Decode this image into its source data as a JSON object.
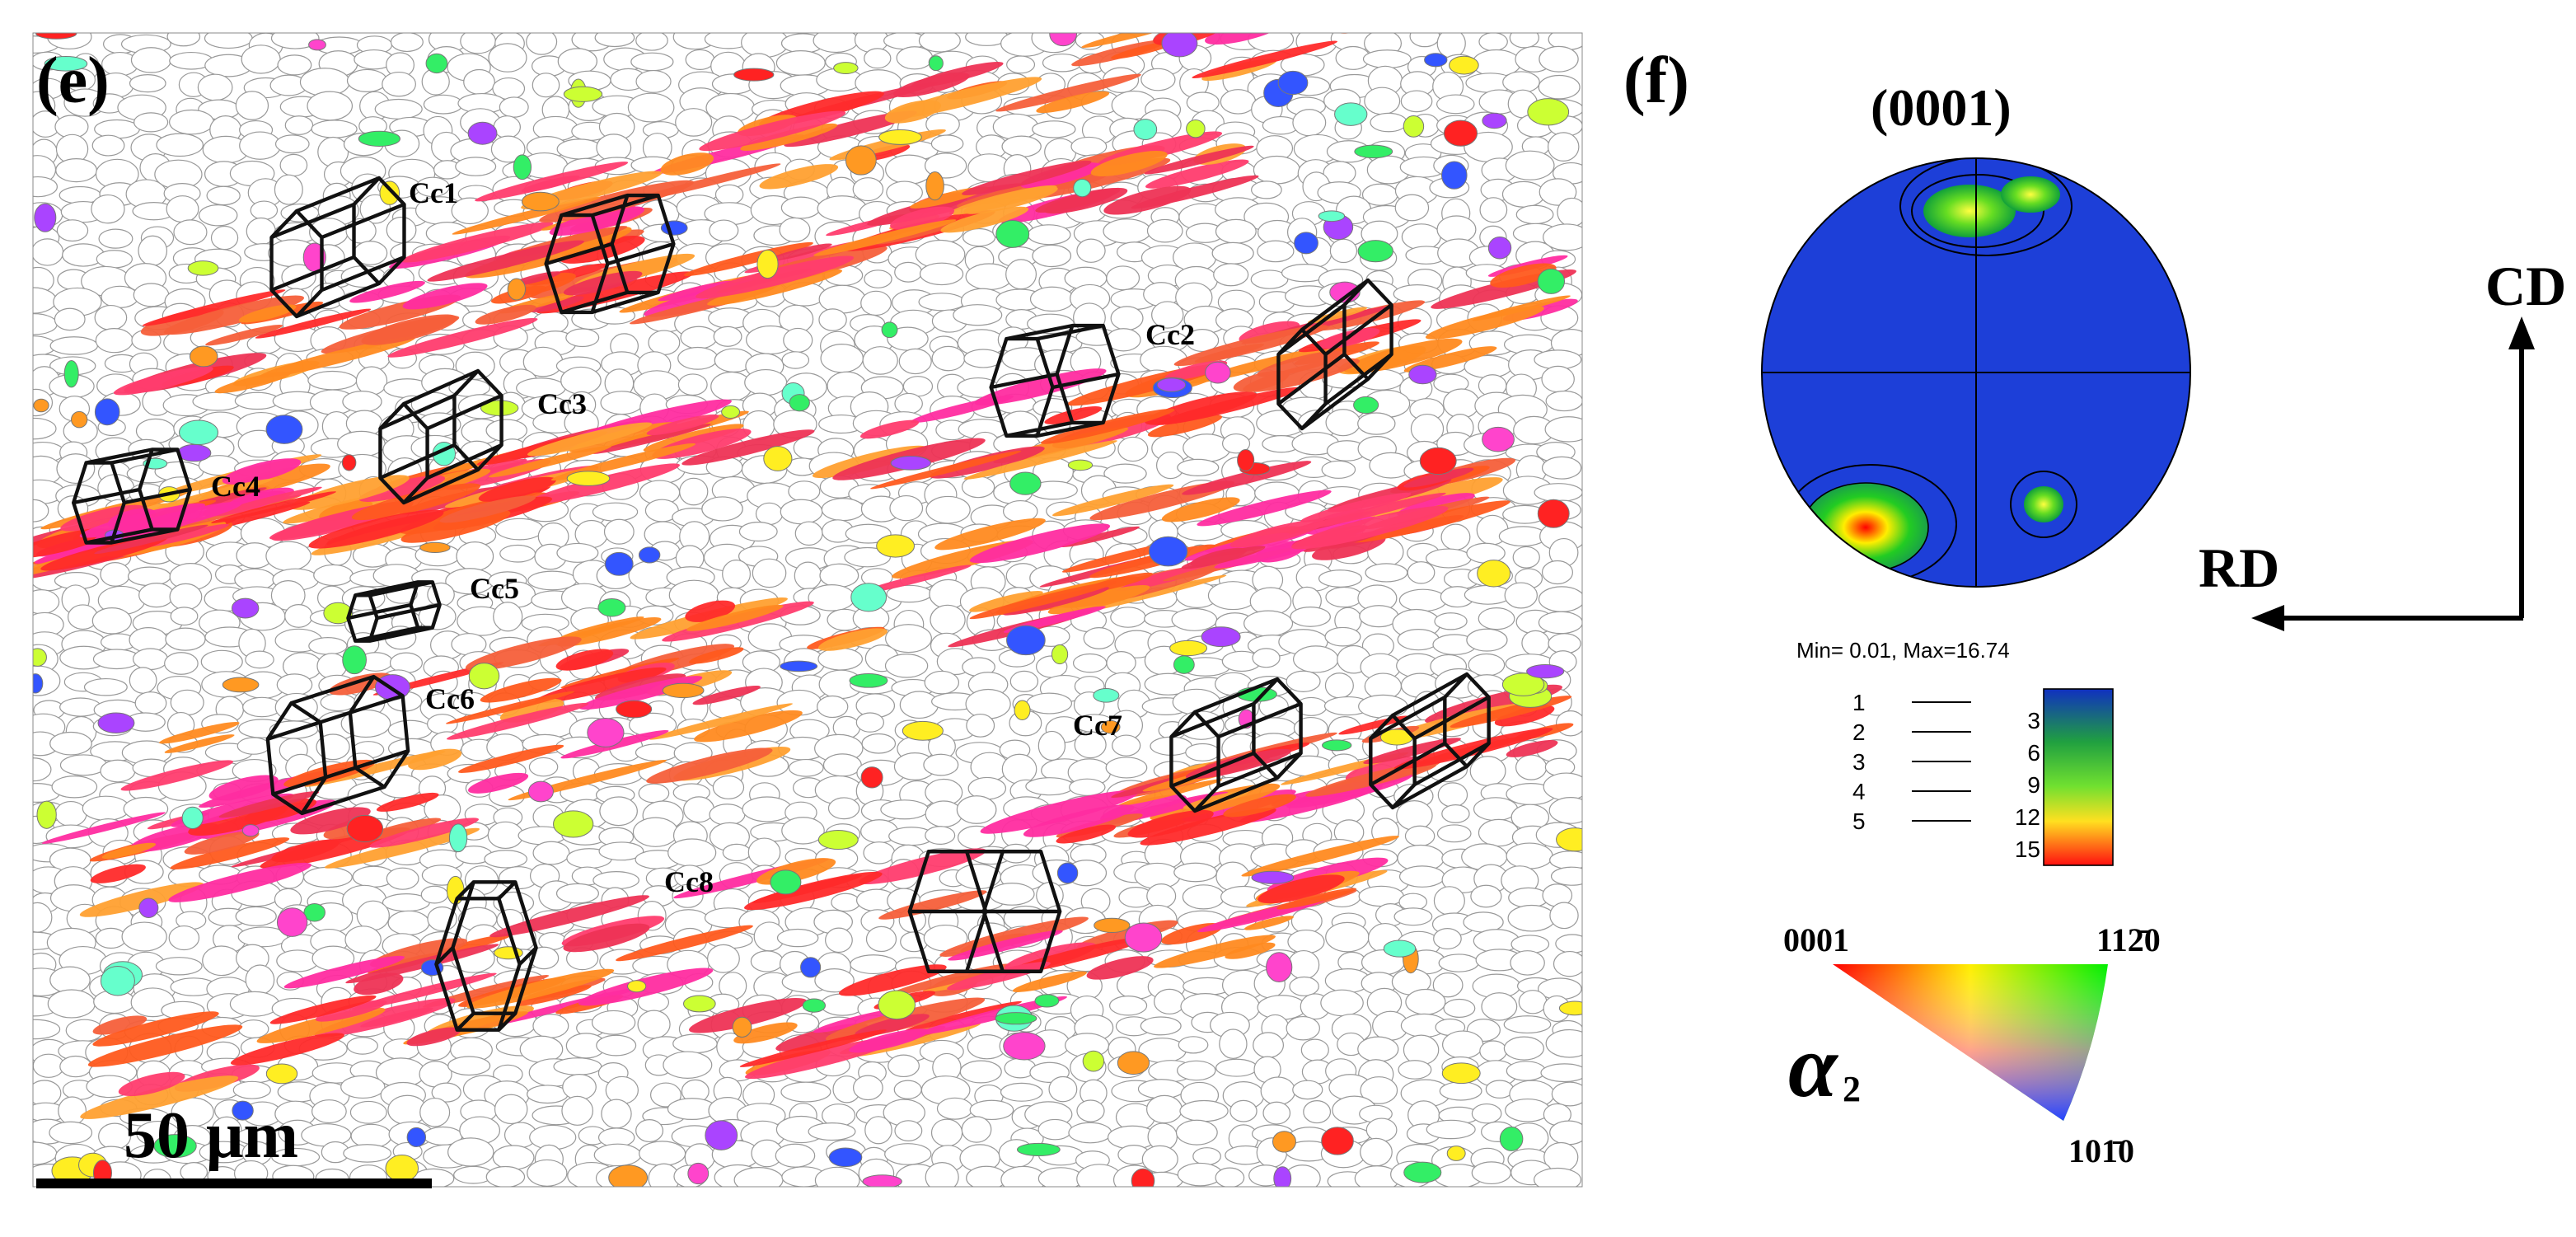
{
  "panel_e": {
    "label": "(e)",
    "callouts": [
      "Cc1",
      "Cc2",
      "Cc3",
      "Cc4",
      "Cc5",
      "Cc6",
      "Cc7",
      "Cc8"
    ],
    "scale_bar": "50 μm"
  },
  "panel_f": {
    "label": "(f)",
    "pole_figure_title": "(0001)",
    "axes": {
      "cd": "CD",
      "rd": "RD"
    },
    "range": "Min= 0.01, Max=16.74",
    "contour_levels": [
      1,
      2,
      3,
      4,
      5
    ],
    "color_scale": [
      3,
      6,
      9,
      12,
      15
    ],
    "ipf": {
      "corners": [
        "0001",
        "112̄0",
        "101̄0"
      ],
      "phase": "α",
      "phase_subscript": "2"
    }
  }
}
